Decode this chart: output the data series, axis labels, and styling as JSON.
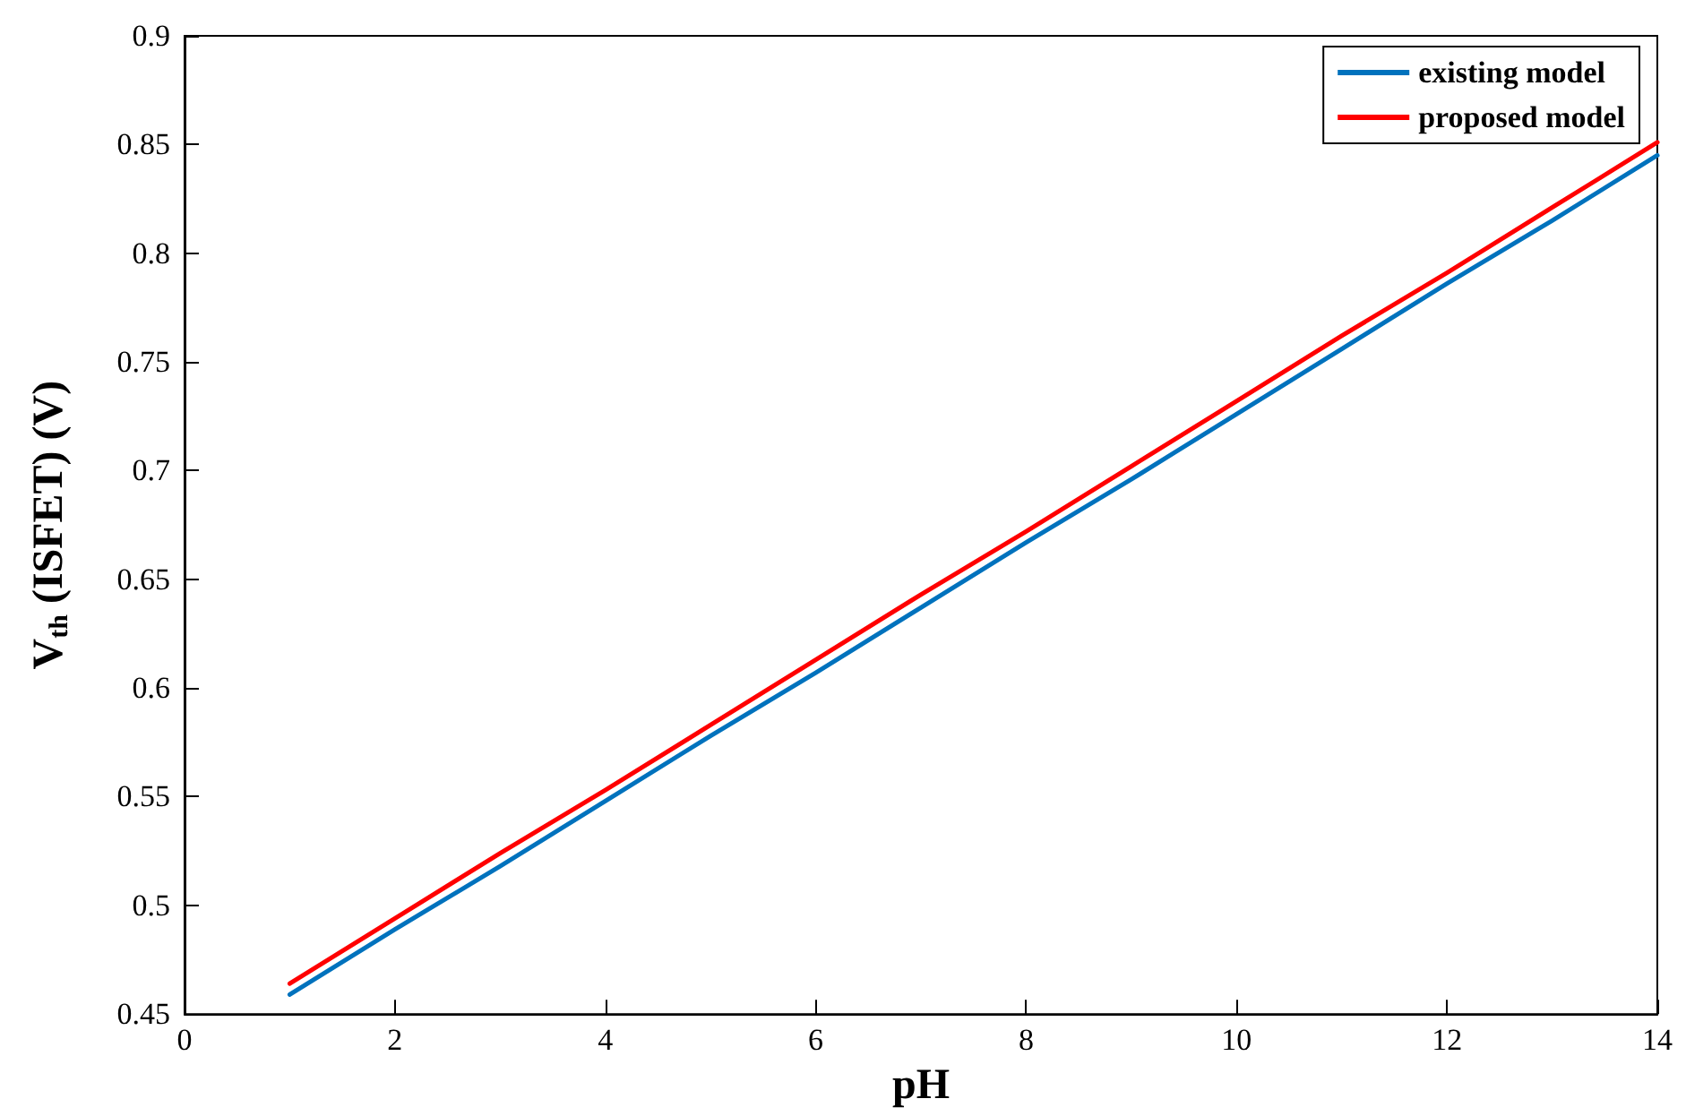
{
  "chart_data": {
    "type": "line",
    "xlabel": "pH",
    "ylabel": "V$_{th}$ (ISFET) (V)",
    "xlim": [
      0,
      14
    ],
    "xticks": [
      0,
      2,
      4,
      6,
      8,
      10,
      12,
      14
    ],
    "ylim": [
      0.45,
      0.9
    ],
    "yticks": [
      0.45,
      0.5,
      0.55,
      0.6,
      0.65,
      0.7,
      0.75,
      0.8,
      0.85,
      0.9
    ],
    "grid": false,
    "legend": "top right",
    "marker": "none",
    "line_style": "solid",
    "x": [
      1,
      2,
      3,
      4,
      5,
      6,
      7,
      8,
      9,
      10,
      11,
      12,
      13,
      14
    ],
    "series": [
      {
        "name": "existing model",
        "color": "#0072bd",
        "values": [
          0.459,
          0.489,
          0.518,
          0.548,
          0.578,
          0.607,
          0.637,
          0.667,
          0.696,
          0.726,
          0.756,
          0.786,
          0.815,
          0.845
        ]
      },
      {
        "name": "proposed model",
        "color": "#ff0000",
        "values": [
          0.464,
          0.494,
          0.524,
          0.553,
          0.583,
          0.613,
          0.643,
          0.672,
          0.702,
          0.732,
          0.762,
          0.791,
          0.821,
          0.851
        ]
      }
    ]
  }
}
